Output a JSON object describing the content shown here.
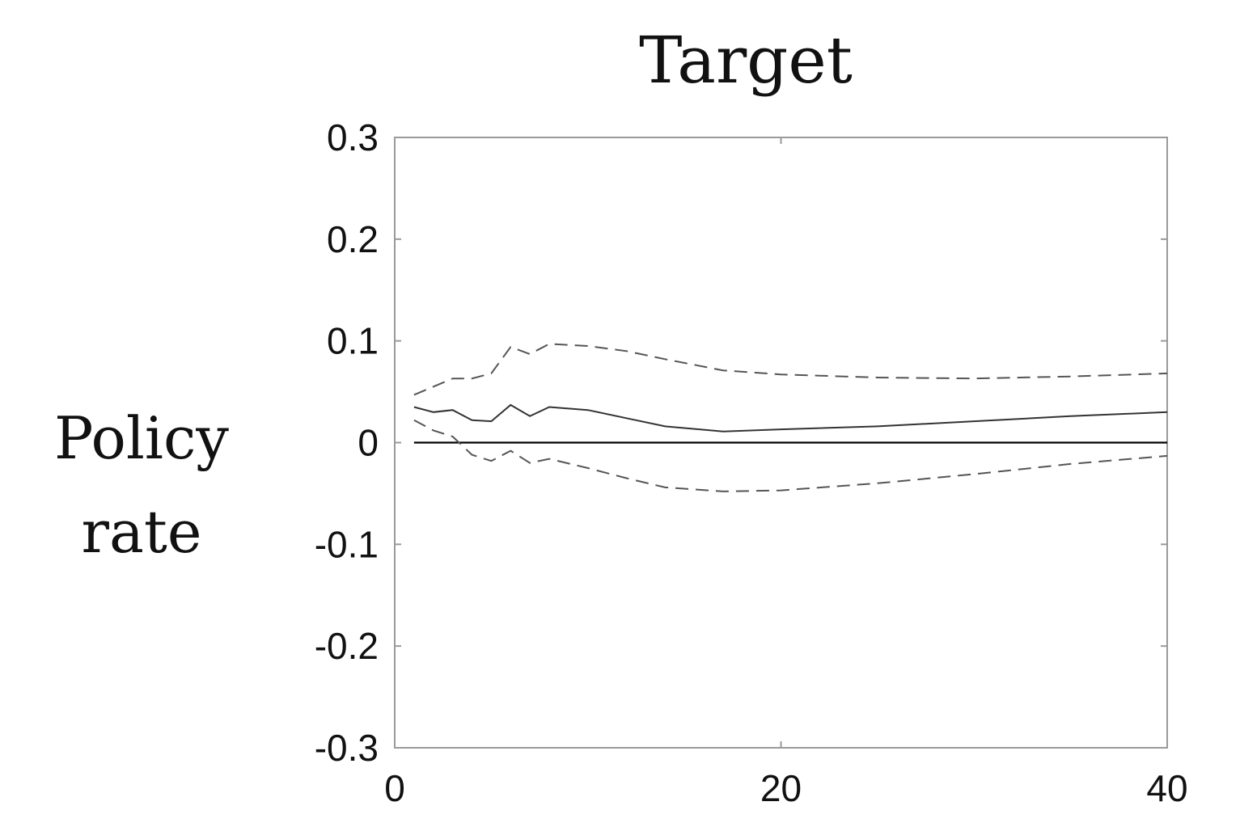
{
  "chart_data": {
    "type": "line",
    "title": "Target",
    "ylabel": [
      "Policy",
      "rate"
    ],
    "xlabel": "",
    "xlim": [
      0,
      40
    ],
    "ylim": [
      -0.3,
      0.3
    ],
    "xticks": [
      0,
      20,
      40
    ],
    "yticks": [
      0.3,
      0.2,
      0.1,
      0,
      -0.1,
      -0.2,
      -0.3
    ],
    "ytick_labels": [
      "0.3",
      "0.2",
      "0.1",
      "0",
      "-0.1",
      "-0.2",
      "-0.3"
    ],
    "zero_line": 0,
    "x": [
      1,
      2,
      3,
      4,
      5,
      6,
      7,
      8,
      10,
      12,
      14,
      17,
      20,
      25,
      30,
      35,
      40
    ],
    "series": [
      {
        "style": "dashed-upper",
        "values": [
          0.047,
          0.055,
          0.063,
          0.063,
          0.068,
          0.094,
          0.087,
          0.097,
          0.095,
          0.09,
          0.082,
          0.071,
          0.067,
          0.064,
          0.063,
          0.065,
          0.068
        ]
      },
      {
        "style": "solid",
        "values": [
          0.035,
          0.03,
          0.032,
          0.022,
          0.021,
          0.037,
          0.026,
          0.035,
          0.032,
          0.024,
          0.016,
          0.011,
          0.013,
          0.016,
          0.021,
          0.026,
          0.03
        ]
      },
      {
        "style": "dashed-lower",
        "values": [
          0.022,
          0.012,
          0.006,
          -0.012,
          -0.018,
          -0.008,
          -0.02,
          -0.016,
          -0.025,
          -0.035,
          -0.044,
          -0.048,
          -0.047,
          -0.04,
          -0.031,
          -0.021,
          -0.013
        ]
      }
    ]
  }
}
